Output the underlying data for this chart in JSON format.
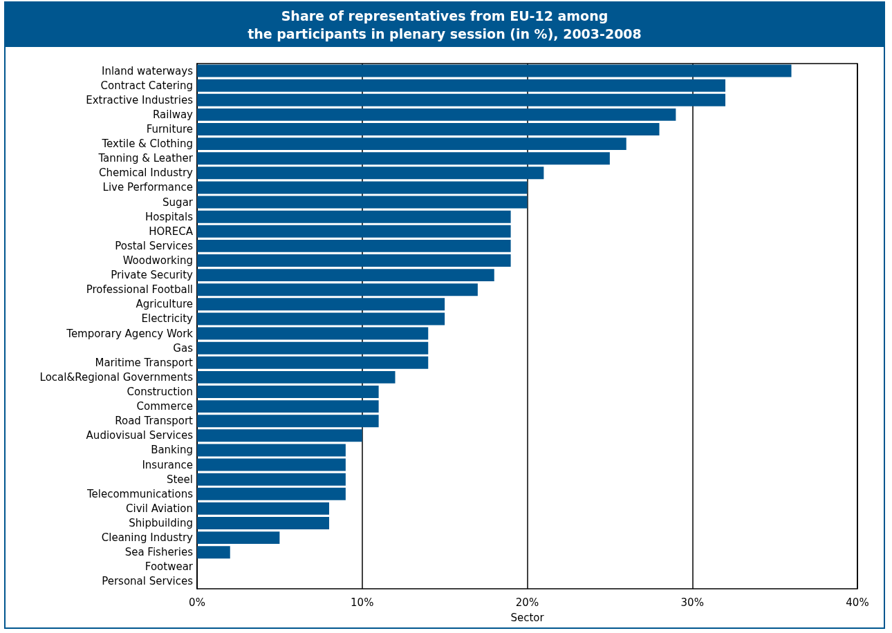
{
  "chart_data": {
    "type": "bar",
    "orientation": "horizontal",
    "title": "Share of representatives from EU-12 among\nthe participants in plenary session (in %), 2003-2008",
    "xlabel": "Sector",
    "categories": [
      "Inland waterways",
      "Contract Catering",
      "Extractive Industries",
      "Railway",
      "Furniture",
      "Textile & Clothing",
      "Tanning & Leather",
      "Chemical Industry",
      "Live Performance",
      "Sugar",
      "Hospitals",
      "HORECA",
      "Postal Services",
      "Woodworking",
      "Private Security",
      "Professional Football",
      "Agriculture",
      "Electricity",
      "Temporary Agency Work",
      "Gas",
      "Maritime Transport",
      "Local&Regional Governments",
      "Construction",
      "Commerce",
      "Road Transport",
      "Audiovisual Services",
      "Banking",
      "Insurance",
      "Steel",
      "Telecommunications",
      "Civil Aviation",
      "Shipbuilding",
      "Cleaning Industry",
      "Sea Fisheries",
      "Footwear",
      "Personal Services"
    ],
    "values": [
      36,
      32,
      32,
      29,
      28,
      26,
      25,
      21,
      20,
      20,
      19,
      19,
      19,
      19,
      18,
      17,
      15,
      15,
      14,
      14,
      14,
      12,
      11,
      11,
      11,
      10,
      9,
      9,
      9,
      9,
      8,
      8,
      5,
      2,
      0,
      0
    ],
    "color": "#00568f",
    "xlim": [
      0,
      40
    ],
    "xticks": [
      {
        "value": 0,
        "label": "0%"
      },
      {
        "value": 10,
        "label": "10%"
      },
      {
        "value": 20,
        "label": "20%"
      },
      {
        "value": 30,
        "label": "30%"
      },
      {
        "value": 40,
        "label": "40%"
      }
    ],
    "grid": "x"
  }
}
